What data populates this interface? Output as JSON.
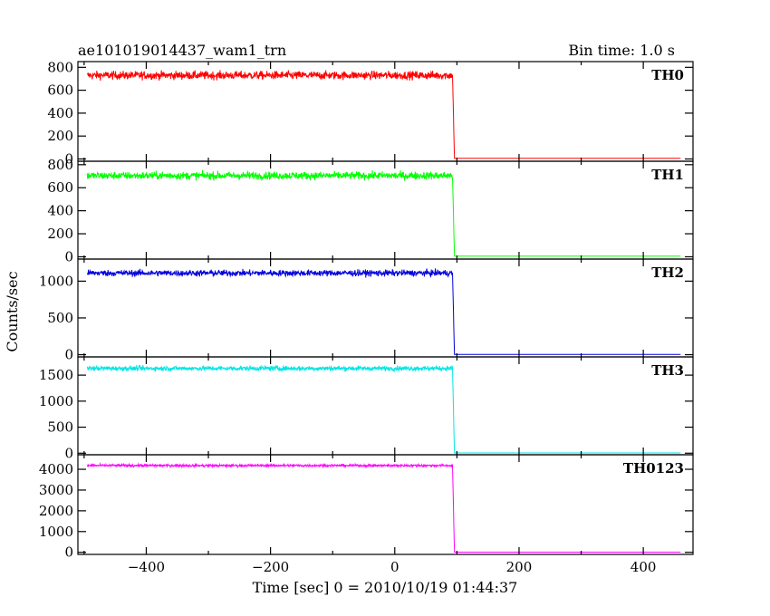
{
  "header": {
    "title": "ae101019014437_wam1_trn",
    "bin_time": "Bin time: 1.0 s"
  },
  "chart_data": {
    "type": "line",
    "title": "ae101019014437_wam1_trn",
    "subtitle": "Bin time: 1.0 s",
    "xlabel": "Time [sec] 0 = 2010/10/19 01:44:37",
    "ylabel": "Counts/sec",
    "xlim": [
      -510,
      480
    ],
    "x_ticks": [
      -400,
      -200,
      0,
      200,
      400
    ],
    "x_tick_labels": [
      "−400",
      "−200",
      "0",
      "200",
      "400"
    ],
    "step_time": 93,
    "data_start": -495,
    "data_end": 460,
    "grid": false,
    "panels": [
      {
        "name": "TH0",
        "color": "#ff0000",
        "ylim": [
          -20,
          850
        ],
        "level": 730,
        "noise": 32,
        "post_level": 5,
        "y_ticks": [
          0,
          200,
          400,
          600,
          800
        ],
        "y_tick_labels": [
          "0",
          "200",
          "400",
          "600",
          "800"
        ]
      },
      {
        "name": "TH1",
        "color": "#00ff00",
        "ylim": [
          -20,
          830
        ],
        "level": 705,
        "noise": 30,
        "post_level": 5,
        "y_ticks": [
          0,
          200,
          400,
          600,
          800
        ],
        "y_tick_labels": [
          "0",
          "200",
          "400",
          "600",
          "800"
        ]
      },
      {
        "name": "TH2",
        "color": "#0000dd",
        "ylim": [
          -30,
          1300
        ],
        "level": 1110,
        "noise": 38,
        "post_level": 5,
        "y_ticks": [
          0,
          500,
          1000
        ],
        "y_tick_labels": [
          "0",
          "500",
          "1000"
        ]
      },
      {
        "name": "TH3",
        "color": "#00e5e5",
        "ylim": [
          -30,
          1850
        ],
        "level": 1630,
        "noise": 42,
        "post_level": 5,
        "y_ticks": [
          0,
          500,
          1000,
          1500
        ],
        "y_tick_labels": [
          "0",
          "500",
          "1000",
          "1500"
        ]
      },
      {
        "name": "TH0123",
        "color": "#ff00ff",
        "ylim": [
          -100,
          4700
        ],
        "level": 4180,
        "noise": 55,
        "post_level": 10,
        "y_ticks": [
          0,
          1000,
          2000,
          3000,
          4000
        ],
        "y_tick_labels": [
          "0",
          "1000",
          "2000",
          "3000",
          "4000"
        ]
      }
    ]
  }
}
